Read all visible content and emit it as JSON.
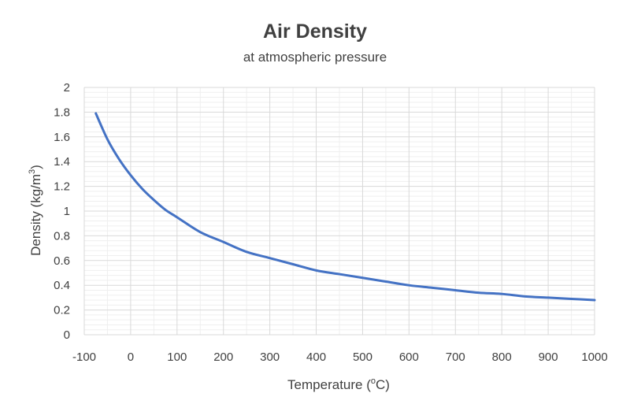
{
  "chart_data": {
    "type": "line",
    "title": "Air Density",
    "subtitle": "at atmospheric pressure",
    "xlabel": "Temperature (°C)",
    "xlabel_parts": {
      "before": "Temperature (",
      "sup": "o",
      "after": "C)"
    },
    "ylabel": "Density (kg/m³)",
    "ylabel_parts": {
      "before": "Density (kg/m",
      "sup": "3",
      "after": ")"
    },
    "xlim": [
      -100,
      1000
    ],
    "ylim": [
      0,
      2
    ],
    "x_ticks": [
      -100,
      0,
      100,
      200,
      300,
      400,
      500,
      600,
      700,
      800,
      900,
      1000
    ],
    "x_tick_labels": [
      "-100",
      "0",
      "100",
      "200",
      "300",
      "400",
      "500",
      "600",
      "700",
      "800",
      "900",
      "1000"
    ],
    "y_ticks": [
      0,
      0.2,
      0.4,
      0.6,
      0.8,
      1,
      1.2,
      1.4,
      1.6,
      1.8,
      2
    ],
    "y_tick_labels": [
      "0",
      "0.2",
      "0.4",
      "0.6",
      "0.8",
      "1",
      "1.2",
      "1.4",
      "1.6",
      "1.8",
      "2"
    ],
    "grid": {
      "major": true,
      "minor": true
    },
    "legend": "none",
    "colors": {
      "series": "#4472C4",
      "grid_major": "#d9d9d9",
      "grid_minor": "#efefef",
      "text": "#404040"
    },
    "series": [
      {
        "x": [
          -75,
          -50,
          -25,
          0,
          25,
          50,
          75,
          100,
          150,
          200,
          250,
          300,
          350,
          400,
          450,
          500,
          550,
          600,
          650,
          700,
          750,
          800,
          850,
          900,
          950,
          1000
        ],
        "values": [
          1.79,
          1.58,
          1.42,
          1.29,
          1.18,
          1.09,
          1.01,
          0.95,
          0.83,
          0.75,
          0.67,
          0.62,
          0.57,
          0.52,
          0.49,
          0.46,
          0.43,
          0.4,
          0.38,
          0.36,
          0.34,
          0.33,
          0.31,
          0.3,
          0.29,
          0.28
        ]
      }
    ]
  }
}
